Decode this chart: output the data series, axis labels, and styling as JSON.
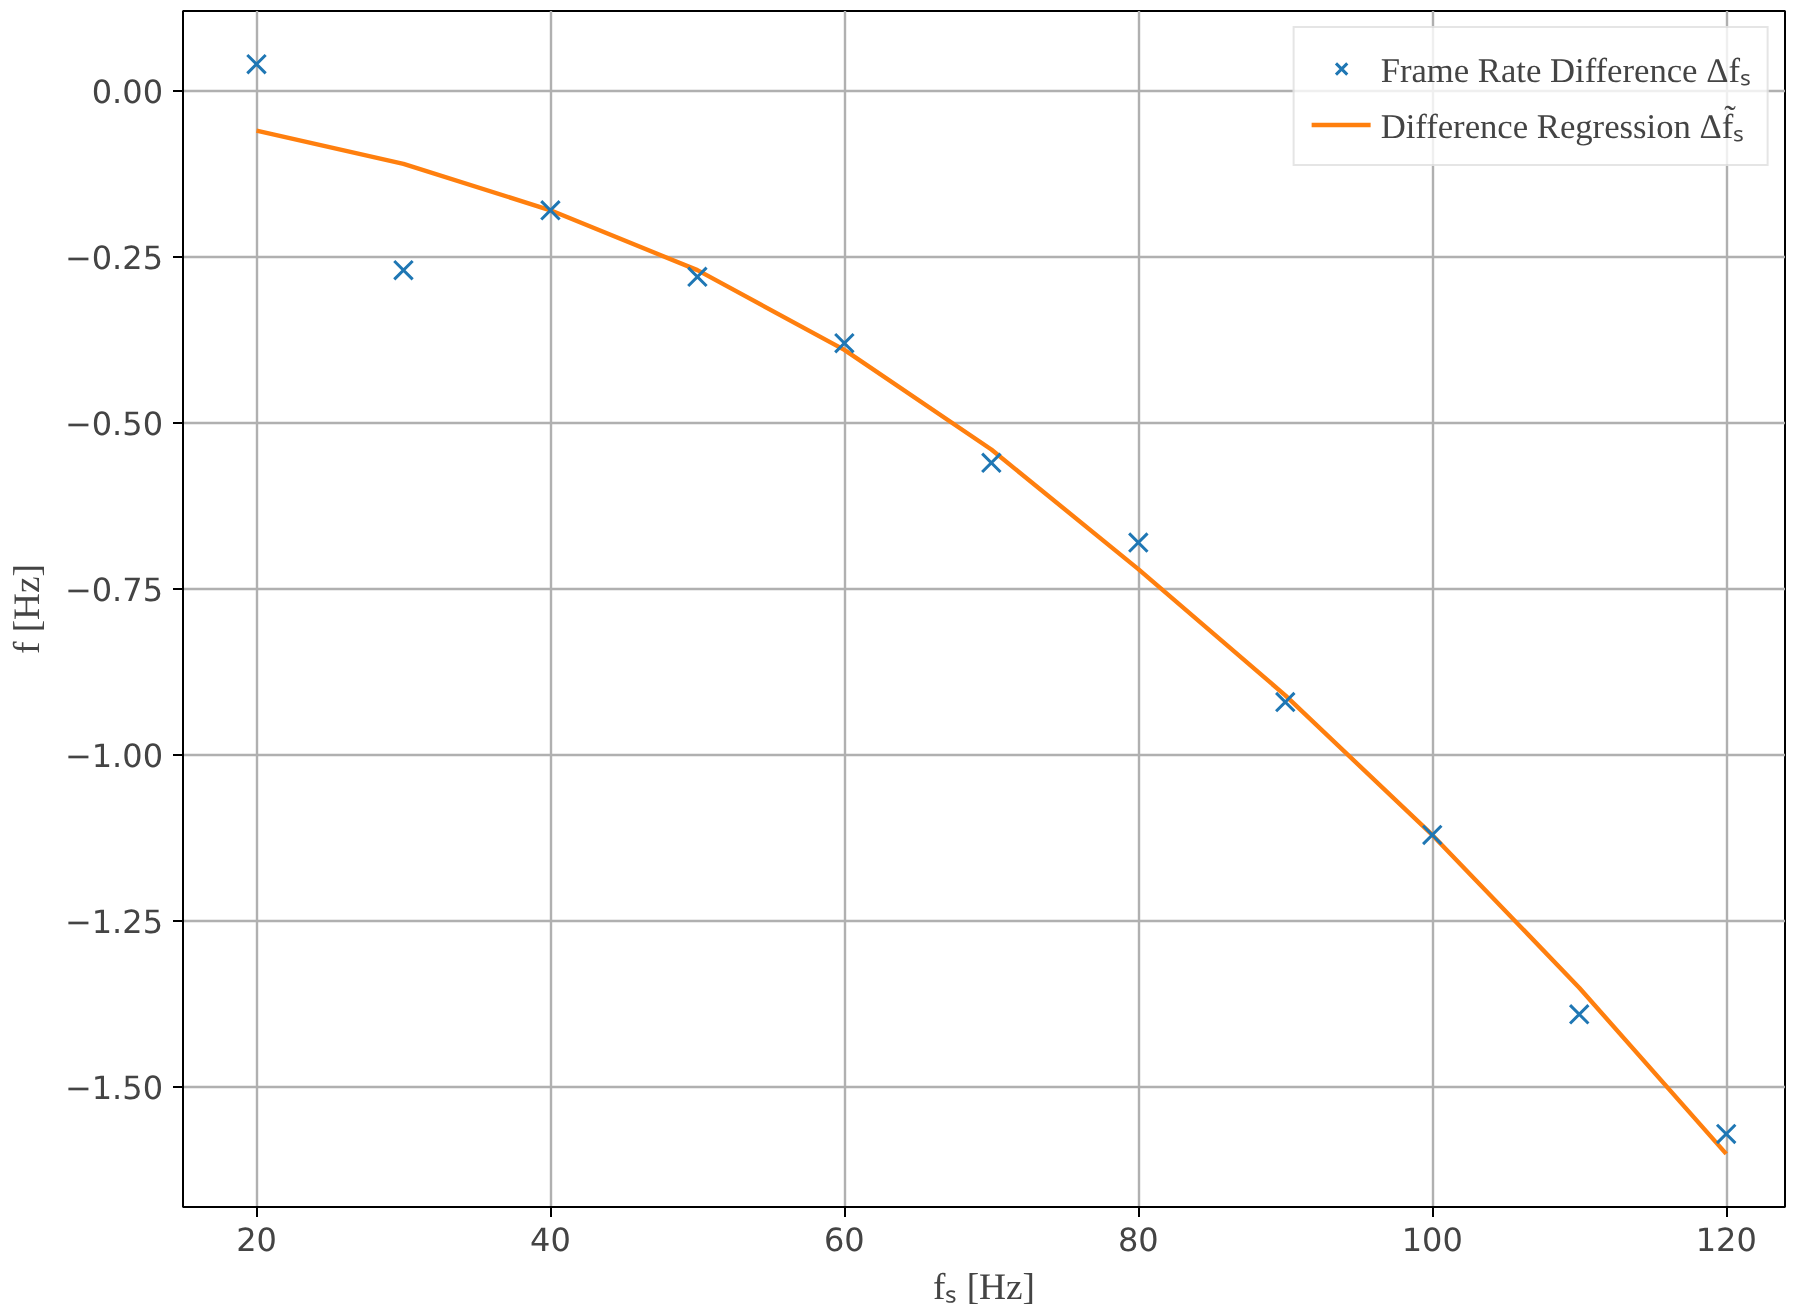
{
  "chart_data": {
    "type": "scatter",
    "xlabel": "fₛ [Hz]",
    "ylabel": "f [Hz]",
    "x": [
      20,
      30,
      40,
      50,
      60,
      70,
      80,
      90,
      100,
      110,
      120
    ],
    "series": [
      {
        "name": "Frame Rate Difference Δfₛ",
        "marker": "cross",
        "color": "#1f77b4",
        "values": [
          0.04,
          -0.27,
          -0.18,
          -0.28,
          -0.38,
          -0.56,
          -0.68,
          -0.92,
          -1.12,
          -1.39,
          -1.57
        ]
      },
      {
        "name": "Difference Regression Δf̃ₛ",
        "type": "line",
        "line_style": "solid",
        "color": "#ff7f0e",
        "values": [
          -0.06,
          -0.11,
          -0.18,
          -0.27,
          -0.39,
          -0.54,
          -0.72,
          -0.91,
          -1.12,
          -1.35,
          -1.6
        ]
      }
    ],
    "xlim": [
      15,
      124
    ],
    "ylim": [
      -1.68,
      0.12
    ],
    "xticks": [
      20,
      40,
      60,
      80,
      100,
      120
    ],
    "yticks": [
      {
        "value": 0,
        "label": "0.00"
      },
      {
        "value": -0.25,
        "label": "−0.25"
      },
      {
        "value": -0.5,
        "label": "−0.50"
      },
      {
        "value": -0.75,
        "label": "−0.75"
      },
      {
        "value": -1.0,
        "label": "−1.00"
      },
      {
        "value": -1.25,
        "label": "−1.25"
      },
      {
        "value": -1.5,
        "label": "−1.50"
      }
    ],
    "grid": true,
    "legend": "top right"
  }
}
